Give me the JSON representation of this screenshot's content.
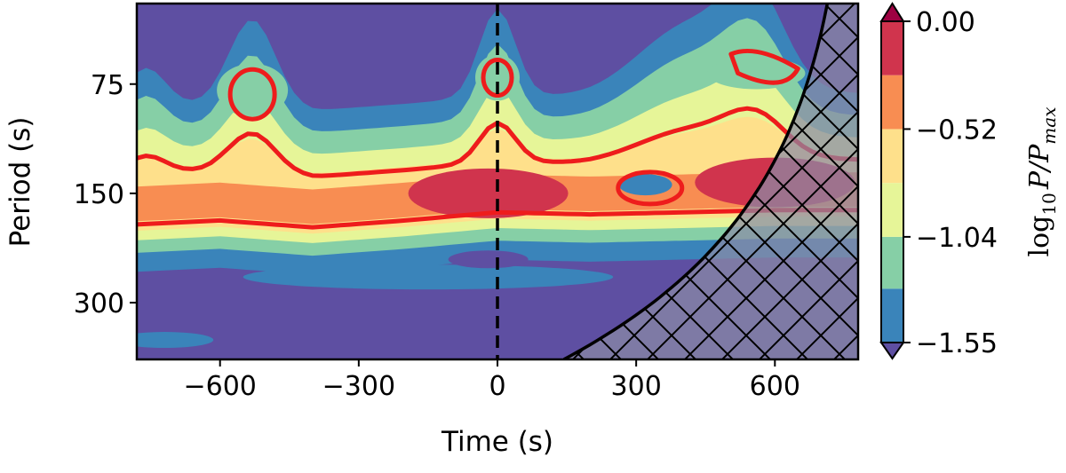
{
  "chart_data": {
    "type": "heatmap",
    "subtype": "wavelet power spectrum (filled contours)",
    "title": "",
    "xlabel": "Time (s)",
    "ylabel": "Period (s)",
    "xlim": [
      -780,
      780
    ],
    "ylim_period": [
      45,
      430
    ],
    "y_scale": "log",
    "y_inverted": true,
    "x_ticks": [
      -600,
      -300,
      0,
      300,
      600
    ],
    "x_tick_labels": [
      "−600",
      "−300",
      "0",
      "300",
      "600"
    ],
    "y_ticks": [
      75,
      150,
      300
    ],
    "y_tick_labels": [
      "75",
      "150",
      "300"
    ],
    "reference_line": {
      "x": 0,
      "style": "dashed",
      "color": "#000000"
    },
    "cone_of_influence": {
      "hatch": "crossed",
      "fill": "#8a8aa6"
    },
    "significance_contour_color": "#ee1c1c",
    "colorbar": {
      "label_main": "log",
      "label_sub": "10",
      "label_rest": "P/P",
      "label_max": "max",
      "levels": [
        -1.55,
        -1.29,
        -1.04,
        -0.78,
        -0.52,
        -0.26,
        0.0
      ],
      "tick_values": [
        0.0,
        -0.52,
        -1.04,
        -1.55
      ],
      "tick_labels": [
        "0.00",
        "−0.52",
        "−1.04",
        "−1.55"
      ],
      "colors": [
        "#5e4fa2",
        "#3a84ba",
        "#86cfa6",
        "#e6f598",
        "#fee08b",
        "#f88d52",
        "#d0344d",
        "#9e0142"
      ],
      "extend": "both"
    },
    "band": [
      {
        "x": -780,
        "p_center": 162
      },
      {
        "x": -600,
        "p_center": 158
      },
      {
        "x": -400,
        "p_center": 165
      },
      {
        "x": -200,
        "p_center": 158
      },
      {
        "x": 0,
        "p_center": 150
      },
      {
        "x": 200,
        "p_center": 152
      },
      {
        "x": 400,
        "p_center": 150
      },
      {
        "x": 600,
        "p_center": 148
      },
      {
        "x": 780,
        "p_center": 148
      }
    ],
    "peak_regions": [
      {
        "x_center": -20,
        "period_center": 150,
        "level": -0.26
      },
      {
        "x_center": 600,
        "period_center": 140,
        "level": -0.26
      }
    ]
  }
}
